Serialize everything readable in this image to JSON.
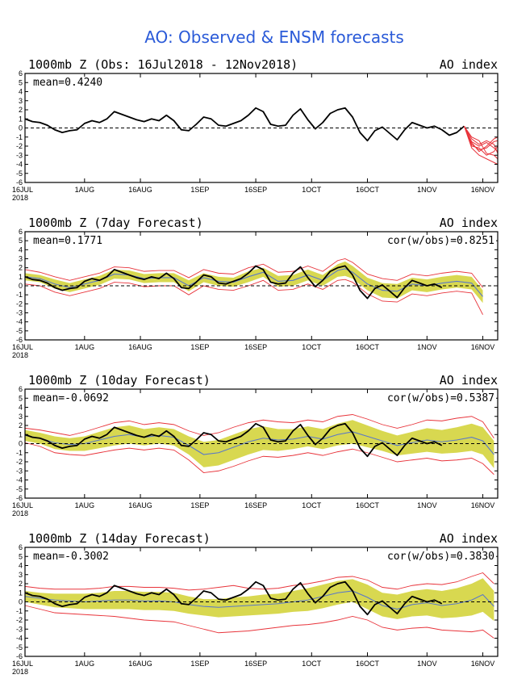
{
  "main_title": "AO: Observed & ENSM forecasts",
  "x_year": "2018",
  "x_ticks": [
    "16JUL",
    "1AUG",
    "16AUG",
    "1SEP",
    "16SEP",
    "1OCT",
    "16OCT",
    "1NOV",
    "16NOV"
  ],
  "colors": {
    "title": "#2a5ad8",
    "observed": "#000000",
    "ensemble_members": "#e8333a",
    "spread": "#d8d850",
    "ensemble_mean": "#5a78c8",
    "zero_line": "#000000"
  },
  "chart_data": [
    {
      "type": "line",
      "title": "1000mb Z (Obs: 16Jul2018 - 12Nov2018)",
      "right_label": "AO index",
      "mean_label": "mean=0.4240",
      "cor_label": "",
      "ylim": [
        -6,
        6
      ],
      "y_ticks": [
        "6",
        "5",
        "4",
        "3",
        "2",
        "1",
        "0",
        "-1",
        "-2",
        "-3",
        "-4",
        "-5",
        "-6"
      ],
      "x_day_range": [
        0,
        127
      ],
      "observed": {
        "x": [
          0,
          2,
          4,
          6,
          8,
          10,
          12,
          14,
          16,
          18,
          20,
          22,
          24,
          26,
          28,
          30,
          32,
          34,
          36,
          38,
          40,
          42,
          44,
          46,
          48,
          50,
          52,
          54,
          56,
          58,
          60,
          62,
          64,
          66,
          68,
          70,
          72,
          74,
          76,
          78,
          80,
          82,
          84,
          86,
          88,
          90,
          92,
          94,
          96,
          98,
          100,
          102,
          104,
          106,
          108,
          110,
          112,
          114,
          116,
          118
        ],
        "values": [
          1.0,
          0.7,
          0.6,
          0.3,
          -0.2,
          -0.5,
          -0.3,
          -0.2,
          0.5,
          0.8,
          0.6,
          1.0,
          1.8,
          1.5,
          1.2,
          0.9,
          0.7,
          1.0,
          0.8,
          1.4,
          0.8,
          -0.2,
          -0.3,
          0.4,
          1.2,
          1.0,
          0.3,
          0.2,
          0.5,
          0.8,
          1.4,
          2.2,
          1.8,
          0.4,
          0.2,
          0.3,
          1.4,
          2.1,
          0.9,
          -0.1,
          0.6,
          1.6,
          2.0,
          2.2,
          1.2,
          -0.5,
          -1.4,
          -0.3,
          0.1,
          -0.6,
          -1.3,
          -0.2,
          0.6,
          0.3,
          0.0,
          0.2,
          -0.2,
          -0.8,
          -0.5,
          0.2
        ]
      },
      "members": {
        "x": [
          118,
          120,
          122,
          124,
          126,
          127
        ],
        "values": [
          [
            0.2,
            -1.8,
            -2.4,
            -2.2,
            -1.5,
            -1.4
          ],
          [
            0.2,
            -1.5,
            -2.0,
            -1.6,
            -2.2,
            -2.6
          ],
          [
            0.2,
            -2.2,
            -3.0,
            -3.4,
            -3.8,
            -4.0
          ],
          [
            0.2,
            -1.0,
            -1.4,
            -2.8,
            -3.0,
            -3.4
          ],
          [
            0.2,
            -1.6,
            -2.6,
            -2.0,
            -1.2,
            -1.0
          ],
          [
            0.2,
            -2.0,
            -2.2,
            -3.0,
            -2.6,
            -2.0
          ],
          [
            0.2,
            -1.2,
            -1.8,
            -1.4,
            -1.8,
            -2.8
          ]
        ]
      }
    },
    {
      "type": "line",
      "title": "1000mb Z (7day Forecast)",
      "right_label": "AO index",
      "mean_label": "mean=0.1771",
      "cor_label": "cor(w/obs)=0.8251",
      "ylim": [
        -6,
        6
      ],
      "y_ticks": [
        "6",
        "5",
        "4",
        "3",
        "2",
        "1",
        "0",
        "-1",
        "-2",
        "-3",
        "-4",
        "-5",
        "-6"
      ],
      "x_day_range": [
        0,
        127
      ],
      "observed": {
        "x": [
          0,
          2,
          4,
          6,
          8,
          10,
          12,
          14,
          16,
          18,
          20,
          22,
          24,
          26,
          28,
          30,
          32,
          34,
          36,
          38,
          40,
          42,
          44,
          46,
          48,
          50,
          52,
          54,
          56,
          58,
          60,
          62,
          64,
          66,
          68,
          70,
          72,
          74,
          76,
          78,
          80,
          82,
          84,
          86,
          88,
          90,
          92,
          94,
          96,
          98,
          100,
          102,
          104,
          106,
          108,
          110,
          112
        ],
        "values": [
          1.0,
          0.7,
          0.6,
          0.3,
          -0.2,
          -0.5,
          -0.3,
          -0.2,
          0.5,
          0.8,
          0.6,
          1.0,
          1.8,
          1.5,
          1.2,
          0.9,
          0.7,
          1.0,
          0.8,
          1.4,
          0.8,
          -0.2,
          -0.3,
          0.4,
          1.2,
          1.0,
          0.3,
          0.2,
          0.5,
          0.8,
          1.4,
          2.2,
          1.8,
          0.4,
          0.2,
          0.3,
          1.4,
          2.1,
          0.9,
          -0.1,
          0.6,
          1.6,
          2.0,
          2.2,
          1.2,
          -0.5,
          -1.4,
          -0.3,
          0.1,
          -0.6,
          -1.3,
          -0.2,
          0.6,
          0.3,
          0.0,
          0.2,
          -0.2
        ]
      },
      "ens_x": [
        0,
        4,
        8,
        12,
        16,
        20,
        24,
        28,
        32,
        36,
        40,
        44,
        48,
        52,
        56,
        60,
        64,
        68,
        72,
        76,
        80,
        84,
        86,
        88,
        92,
        96,
        100,
        104,
        108,
        112,
        116,
        120,
        123
      ],
      "ens_mean": [
        1.0,
        0.8,
        0.2,
        -0.2,
        0.2,
        0.6,
        1.3,
        1.2,
        0.8,
        0.9,
        0.9,
        0.0,
        0.9,
        0.5,
        0.4,
        1.0,
        1.5,
        0.5,
        0.6,
        1.2,
        0.6,
        1.7,
        1.9,
        1.5,
        0.2,
        -0.5,
        -0.6,
        0.2,
        0.0,
        0.3,
        0.5,
        0.3,
        -1.2
      ],
      "spread_upper": [
        1.4,
        1.2,
        0.7,
        0.3,
        0.7,
        1.1,
        1.8,
        1.7,
        1.3,
        1.4,
        1.4,
        0.6,
        1.4,
        1.0,
        0.9,
        1.6,
        2.0,
        1.1,
        1.2,
        1.8,
        1.2,
        2.4,
        2.7,
        2.2,
        0.9,
        0.3,
        0.2,
        0.9,
        0.7,
        1.0,
        1.2,
        1.0,
        -0.5
      ],
      "spread_lower": [
        0.6,
        0.4,
        -0.3,
        -0.7,
        -0.3,
        0.1,
        0.8,
        0.7,
        0.3,
        0.4,
        0.4,
        -0.6,
        0.4,
        0.0,
        -0.1,
        0.4,
        1.0,
        -0.1,
        0.0,
        0.6,
        0.0,
        1.0,
        1.1,
        0.8,
        -0.5,
        -1.3,
        -1.4,
        -0.5,
        -0.7,
        -0.4,
        -0.2,
        -0.4,
        -1.9
      ],
      "members_upper": [
        1.8,
        1.5,
        1.0,
        0.6,
        1.0,
        1.4,
        2.1,
        2.0,
        1.6,
        1.7,
        1.7,
        0.9,
        1.8,
        1.4,
        1.3,
        2.0,
        2.4,
        1.5,
        1.6,
        2.2,
        1.6,
        2.8,
        3.0,
        2.6,
        1.3,
        0.8,
        0.6,
        1.3,
        1.1,
        1.4,
        1.6,
        1.4,
        -0.2
      ],
      "members_lower": [
        0.2,
        0.0,
        -0.7,
        -1.1,
        -0.7,
        -0.3,
        0.4,
        0.3,
        -0.1,
        0.0,
        0.0,
        -1.0,
        0.0,
        -0.4,
        -0.5,
        0.0,
        0.6,
        -0.5,
        -0.4,
        0.2,
        -0.4,
        0.6,
        0.7,
        0.4,
        -0.9,
        -1.7,
        -1.8,
        -0.9,
        -1.1,
        -0.8,
        -0.6,
        -0.8,
        -3.2
      ]
    },
    {
      "type": "line",
      "title": "1000mb Z (10day Forecast)",
      "right_label": "AO index",
      "mean_label": "mean=-0.0692",
      "cor_label": "cor(w/obs)=0.5387",
      "ylim": [
        -6,
        6
      ],
      "y_ticks": [
        "6",
        "5",
        "4",
        "3",
        "2",
        "1",
        "0",
        "-1",
        "-2",
        "-3",
        "-4",
        "-5",
        "-6"
      ],
      "x_day_range": [
        0,
        127
      ],
      "observed": {
        "x": [
          0,
          2,
          4,
          6,
          8,
          10,
          12,
          14,
          16,
          18,
          20,
          22,
          24,
          26,
          28,
          30,
          32,
          34,
          36,
          38,
          40,
          42,
          44,
          46,
          48,
          50,
          52,
          54,
          56,
          58,
          60,
          62,
          64,
          66,
          68,
          70,
          72,
          74,
          76,
          78,
          80,
          82,
          84,
          86,
          88,
          90,
          92,
          94,
          96,
          98,
          100,
          102,
          104,
          106,
          108,
          110,
          112
        ],
        "values": [
          1.0,
          0.7,
          0.6,
          0.3,
          -0.2,
          -0.5,
          -0.3,
          -0.2,
          0.5,
          0.8,
          0.6,
          1.0,
          1.8,
          1.5,
          1.2,
          0.9,
          0.7,
          1.0,
          0.8,
          1.4,
          0.8,
          -0.2,
          -0.3,
          0.4,
          1.2,
          1.0,
          0.3,
          0.2,
          0.5,
          0.8,
          1.4,
          2.2,
          1.8,
          0.4,
          0.2,
          0.3,
          1.4,
          2.1,
          0.9,
          -0.1,
          0.6,
          1.6,
          2.0,
          2.2,
          1.2,
          -0.5,
          -1.4,
          -0.3,
          0.1,
          -0.6,
          -1.3,
          -0.2,
          0.6,
          0.3,
          0.0,
          0.2,
          -0.2
        ]
      },
      "ens_x": [
        0,
        4,
        8,
        12,
        16,
        20,
        24,
        28,
        32,
        36,
        40,
        44,
        48,
        52,
        56,
        60,
        64,
        68,
        72,
        76,
        80,
        84,
        88,
        92,
        96,
        100,
        104,
        108,
        112,
        116,
        120,
        123,
        126
      ],
      "ens_mean": [
        0.9,
        0.6,
        0.1,
        -0.1,
        0.0,
        0.4,
        0.8,
        1.0,
        0.7,
        0.9,
        0.7,
        -0.2,
        -1.2,
        -1.0,
        -0.4,
        0.2,
        0.6,
        0.4,
        0.5,
        0.8,
        0.5,
        1.0,
        1.3,
        0.8,
        0.3,
        -0.2,
        0.1,
        0.4,
        0.2,
        0.4,
        0.7,
        0.3,
        -1.2
      ],
      "spread_upper": [
        1.5,
        1.2,
        0.8,
        0.6,
        0.8,
        1.3,
        1.8,
        2.0,
        1.6,
        1.8,
        1.6,
        0.8,
        0.2,
        0.4,
        1.0,
        1.6,
        1.9,
        1.6,
        1.6,
        1.9,
        1.6,
        2.2,
        2.6,
        2.0,
        1.4,
        0.9,
        1.3,
        1.7,
        1.5,
        1.8,
        2.2,
        1.8,
        0.3
      ],
      "spread_lower": [
        0.3,
        0.0,
        -0.6,
        -0.8,
        -0.8,
        -0.5,
        -0.2,
        0.0,
        -0.2,
        0.0,
        -0.2,
        -1.2,
        -2.6,
        -2.4,
        -1.8,
        -1.2,
        -0.7,
        -0.8,
        -0.6,
        -0.3,
        -0.6,
        -0.2,
        0.0,
        -0.4,
        -0.8,
        -1.3,
        -1.1,
        -0.9,
        -1.1,
        -1.0,
        -0.8,
        -1.2,
        -2.7
      ],
      "members_upper": [
        1.7,
        1.5,
        1.2,
        0.9,
        1.3,
        1.8,
        2.3,
        2.5,
        2.1,
        2.3,
        2.1,
        1.4,
        0.9,
        1.2,
        1.8,
        2.3,
        2.6,
        2.4,
        2.3,
        2.6,
        2.4,
        3.0,
        3.2,
        2.7,
        2.1,
        1.7,
        2.1,
        2.6,
        2.5,
        2.8,
        3.0,
        2.4,
        0.6
      ],
      "members_lower": [
        0.1,
        -0.3,
        -1.0,
        -1.2,
        -1.3,
        -1.0,
        -0.7,
        -0.5,
        -0.7,
        -0.5,
        -0.7,
        -1.8,
        -3.2,
        -3.0,
        -2.5,
        -1.9,
        -1.4,
        -1.5,
        -1.3,
        -1.0,
        -1.3,
        -0.9,
        -0.6,
        -1.0,
        -1.5,
        -2.0,
        -1.8,
        -1.6,
        -1.9,
        -1.8,
        -1.6,
        -2.2,
        -3.4
      ]
    },
    {
      "type": "line",
      "title": "1000mb Z (14day Forecast)",
      "right_label": "AO index",
      "mean_label": "mean=-0.3002",
      "cor_label": "cor(w/obs)=0.3830",
      "ylim": [
        -6,
        6
      ],
      "y_ticks": [
        "6",
        "5",
        "4",
        "3",
        "2",
        "1",
        "0",
        "-1",
        "-2",
        "-3",
        "-4",
        "-5",
        "-6"
      ],
      "x_day_range": [
        0,
        127
      ],
      "observed": {
        "x": [
          0,
          2,
          4,
          6,
          8,
          10,
          12,
          14,
          16,
          18,
          20,
          22,
          24,
          26,
          28,
          30,
          32,
          34,
          36,
          38,
          40,
          42,
          44,
          46,
          48,
          50,
          52,
          54,
          56,
          58,
          60,
          62,
          64,
          66,
          68,
          70,
          72,
          74,
          76,
          78,
          80,
          82,
          84,
          86,
          88,
          90,
          92,
          94,
          96,
          98,
          100,
          102,
          104,
          106,
          108,
          110,
          112
        ],
        "values": [
          1.0,
          0.7,
          0.6,
          0.3,
          -0.2,
          -0.5,
          -0.3,
          -0.2,
          0.5,
          0.8,
          0.6,
          1.0,
          1.8,
          1.5,
          1.2,
          0.9,
          0.7,
          1.0,
          0.8,
          1.4,
          0.8,
          -0.2,
          -0.3,
          0.4,
          1.2,
          1.0,
          0.3,
          0.2,
          0.5,
          0.8,
          1.4,
          2.2,
          1.8,
          0.4,
          0.2,
          0.3,
          1.4,
          2.1,
          0.9,
          -0.1,
          0.6,
          1.6,
          2.0,
          2.2,
          1.2,
          -0.5,
          -1.4,
          -0.3,
          0.1,
          -0.6,
          -1.3,
          -0.2,
          0.6,
          0.3,
          0.0,
          0.2,
          -0.2
        ]
      },
      "ens_x": [
        0,
        4,
        8,
        12,
        16,
        20,
        24,
        28,
        32,
        36,
        40,
        44,
        48,
        52,
        56,
        60,
        64,
        68,
        72,
        76,
        80,
        84,
        88,
        92,
        96,
        100,
        104,
        108,
        112,
        116,
        120,
        123,
        126
      ],
      "ens_mean": [
        0.6,
        0.4,
        0.2,
        0.1,
        0.0,
        0.1,
        0.2,
        0.2,
        0.1,
        0.1,
        0.0,
        -0.3,
        -0.5,
        -0.6,
        -0.5,
        -0.4,
        -0.3,
        -0.2,
        0.0,
        0.2,
        0.6,
        1.0,
        1.2,
        0.5,
        -0.4,
        -0.8,
        -0.3,
        -0.1,
        -0.4,
        -0.2,
        0.2,
        0.8,
        -0.5
      ],
      "spread_upper": [
        1.2,
        1.0,
        0.9,
        0.9,
        0.9,
        1.0,
        1.2,
        1.2,
        1.1,
        1.1,
        1.0,
        0.6,
        0.3,
        0.3,
        0.5,
        0.6,
        0.8,
        0.9,
        1.2,
        1.5,
        1.9,
        2.3,
        2.5,
        1.9,
        1.0,
        0.8,
        1.2,
        1.4,
        1.2,
        1.5,
        2.0,
        2.6,
        1.2
      ],
      "spread_lower": [
        0.0,
        -0.3,
        -0.6,
        -0.7,
        -0.8,
        -0.8,
        -0.8,
        -0.8,
        -0.9,
        -0.9,
        -1.0,
        -1.3,
        -1.5,
        -1.7,
        -1.6,
        -1.5,
        -1.4,
        -1.3,
        -1.1,
        -1.0,
        -0.7,
        -0.3,
        0.0,
        -0.8,
        -1.6,
        -1.9,
        -1.6,
        -1.5,
        -1.8,
        -1.7,
        -1.5,
        -1.1,
        -2.1
      ],
      "members_upper": [
        1.7,
        1.5,
        1.4,
        1.4,
        1.4,
        1.5,
        1.7,
        1.7,
        1.6,
        1.6,
        1.5,
        1.3,
        1.4,
        1.6,
        1.8,
        1.5,
        1.4,
        1.5,
        1.8,
        2.0,
        2.3,
        2.7,
        2.8,
        2.4,
        1.6,
        1.4,
        1.8,
        2.0,
        1.9,
        2.2,
        2.8,
        3.2,
        2.0
      ],
      "members_lower": [
        -0.4,
        -0.8,
        -1.2,
        -1.3,
        -1.4,
        -1.5,
        -1.6,
        -1.8,
        -2.0,
        -2.1,
        -2.2,
        -2.6,
        -3.0,
        -3.4,
        -3.3,
        -3.2,
        -3.0,
        -2.8,
        -2.6,
        -2.5,
        -2.3,
        -2.0,
        -1.6,
        -2.0,
        -2.8,
        -3.1,
        -2.9,
        -2.8,
        -3.1,
        -3.2,
        -3.3,
        -3.1,
        -4.0
      ]
    }
  ]
}
